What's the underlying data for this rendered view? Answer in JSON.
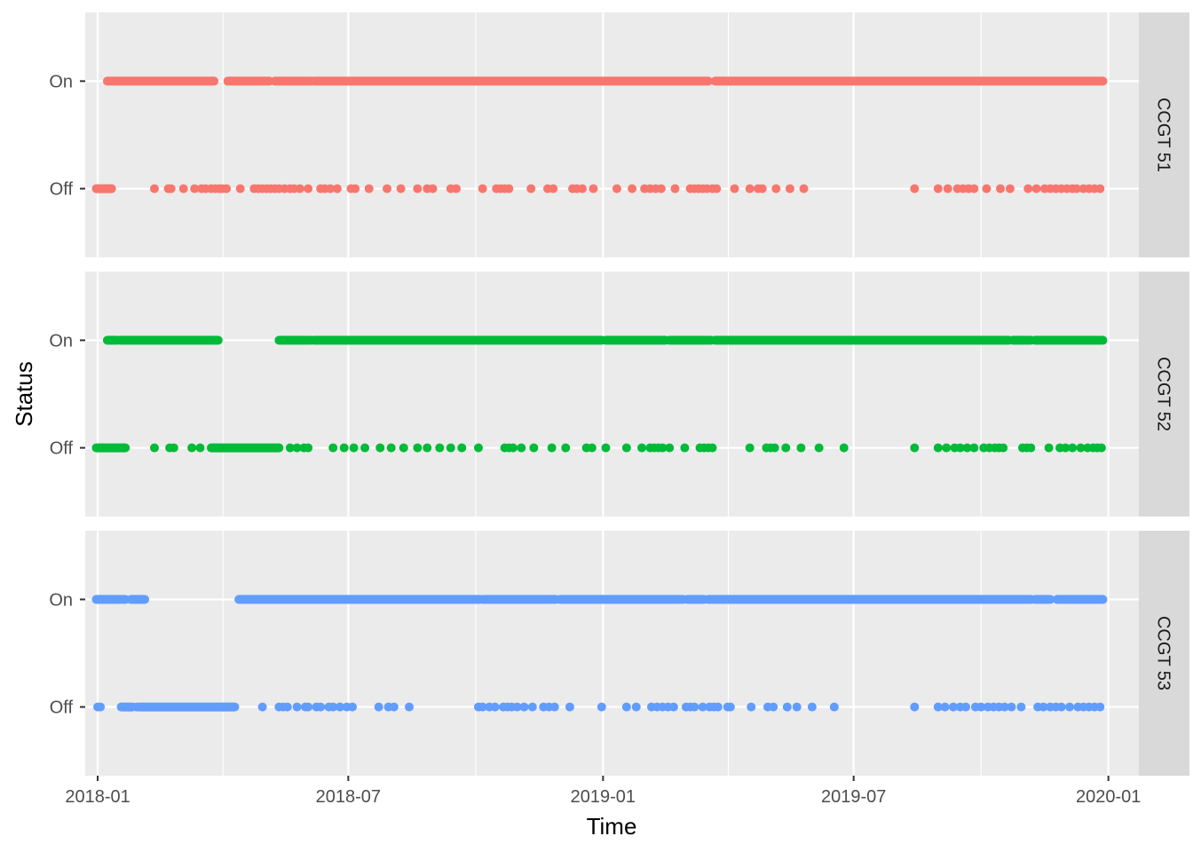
{
  "chart_data": {
    "type": "scatter",
    "xlabel": "Time",
    "ylabel": "Status",
    "x_ticks": [
      "2018-01",
      "2018-07",
      "2019-01",
      "2019-07",
      "2020-01"
    ],
    "y_categories": [
      "Off",
      "On"
    ],
    "xlim": [
      "2017-12-23",
      "2020-01-23"
    ],
    "grid": true,
    "legend": "none",
    "panels": [
      {
        "label": "CCGT 51",
        "color": "#F8766D",
        "on_ranges": [
          [
            "2018-01-08",
            "2018-03-26"
          ],
          [
            "2018-04-05",
            "2018-05-05"
          ],
          [
            "2018-05-09",
            "2018-06-04"
          ],
          [
            "2018-06-06",
            "2019-03-18"
          ],
          [
            "2019-03-23",
            "2019-12-28"
          ]
        ],
        "off_ranges": [
          [
            "2017-12-31",
            "2018-01-11"
          ]
        ],
        "off_points": [
          "2018-02-11",
          "2018-02-21",
          "2018-02-23",
          "2018-03-04",
          "2018-03-12",
          "2018-03-17",
          "2018-03-20",
          "2018-03-24",
          "2018-03-27",
          "2018-03-30",
          "2018-04-01",
          "2018-04-04",
          "2018-04-14",
          "2018-04-24",
          "2018-04-27",
          "2018-04-30",
          "2018-05-03",
          "2018-05-06",
          "2018-05-09",
          "2018-05-12",
          "2018-05-16",
          "2018-05-20",
          "2018-05-23",
          "2018-05-27",
          "2018-06-02",
          "2018-06-11",
          "2018-06-14",
          "2018-06-18",
          "2018-06-23",
          "2018-07-03",
          "2018-07-06",
          "2018-07-16",
          "2018-07-29",
          "2018-08-08",
          "2018-08-20",
          "2018-08-27",
          "2018-08-31",
          "2018-09-13",
          "2018-09-17",
          "2018-10-06",
          "2018-10-16",
          "2018-10-19",
          "2018-10-22",
          "2018-10-25",
          "2018-11-10",
          "2018-11-22",
          "2018-11-26",
          "2018-12-10",
          "2018-12-13",
          "2018-12-17",
          "2018-12-25",
          "2019-01-11",
          "2019-01-22",
          "2019-01-31",
          "2019-02-04",
          "2019-02-08",
          "2019-02-12",
          "2019-02-22",
          "2019-03-05",
          "2019-03-08",
          "2019-03-11",
          "2019-03-14",
          "2019-03-17",
          "2019-03-21",
          "2019-03-24",
          "2019-04-06",
          "2019-04-17",
          "2019-04-23",
          "2019-04-26",
          "2019-05-06",
          "2019-05-16",
          "2019-05-26",
          "2019-08-14",
          "2019-08-31",
          "2019-09-07",
          "2019-09-14",
          "2019-09-18",
          "2019-09-22",
          "2019-09-26",
          "2019-10-05",
          "2019-10-15",
          "2019-10-22",
          "2019-11-04",
          "2019-11-10",
          "2019-11-16",
          "2019-11-20",
          "2019-11-24",
          "2019-11-28",
          "2019-12-02",
          "2019-12-06",
          "2019-12-09",
          "2019-12-14",
          "2019-12-18",
          "2019-12-22",
          "2019-12-26"
        ]
      },
      {
        "label": "CCGT 52",
        "color": "#00BA38",
        "on_ranges": [
          [
            "2018-01-08",
            "2018-01-15"
          ],
          [
            "2018-01-17",
            "2018-03-29"
          ],
          [
            "2018-05-12",
            "2018-06-04"
          ],
          [
            "2018-06-06",
            "2018-12-31"
          ],
          [
            "2019-01-03",
            "2019-02-15"
          ],
          [
            "2019-02-18",
            "2019-03-20"
          ],
          [
            "2019-03-23",
            "2019-10-21"
          ],
          [
            "2019-10-24",
            "2019-11-06"
          ],
          [
            "2019-11-09",
            "2019-12-28"
          ]
        ],
        "off_ranges": [
          [
            "2017-12-31",
            "2018-01-21"
          ],
          [
            "2018-03-24",
            "2018-05-12"
          ]
        ],
        "off_points": [
          "2018-02-11",
          "2018-02-22",
          "2018-02-25",
          "2018-03-10",
          "2018-03-16",
          "2018-05-20",
          "2018-05-25",
          "2018-05-30",
          "2018-06-02",
          "2018-06-20",
          "2018-06-28",
          "2018-07-05",
          "2018-07-13",
          "2018-07-24",
          "2018-08-01",
          "2018-08-10",
          "2018-08-20",
          "2018-08-27",
          "2018-09-05",
          "2018-09-13",
          "2018-09-21",
          "2018-10-03",
          "2018-10-22",
          "2018-10-25",
          "2018-10-28",
          "2018-11-03",
          "2018-11-12",
          "2018-11-25",
          "2018-12-05",
          "2018-12-20",
          "2018-12-24",
          "2019-01-03",
          "2019-01-18",
          "2019-01-29",
          "2019-02-04",
          "2019-02-07",
          "2019-02-10",
          "2019-02-13",
          "2019-02-18",
          "2019-03-01",
          "2019-03-12",
          "2019-03-15",
          "2019-03-18",
          "2019-03-21",
          "2019-04-17",
          "2019-04-29",
          "2019-05-02",
          "2019-05-05",
          "2019-05-13",
          "2019-05-24",
          "2019-06-06",
          "2019-06-24",
          "2019-08-14",
          "2019-08-31",
          "2019-09-06",
          "2019-09-12",
          "2019-09-16",
          "2019-09-21",
          "2019-09-26",
          "2019-10-03",
          "2019-10-07",
          "2019-10-11",
          "2019-10-14",
          "2019-10-17",
          "2019-10-31",
          "2019-11-03",
          "2019-11-06",
          "2019-11-19",
          "2019-11-27",
          "2019-12-01",
          "2019-12-06",
          "2019-12-12",
          "2019-12-17",
          "2019-12-21",
          "2019-12-24",
          "2019-12-27"
        ]
      },
      {
        "label": "CCGT 53",
        "color": "#619CFF",
        "on_ranges": [
          [
            "2017-12-31",
            "2018-01-21"
          ],
          [
            "2018-01-25",
            "2018-02-04"
          ],
          [
            "2018-04-13",
            "2018-10-04"
          ],
          [
            "2018-10-06",
            "2018-11-28"
          ],
          [
            "2018-12-01",
            "2019-02-28"
          ],
          [
            "2019-03-03",
            "2019-03-15"
          ],
          [
            "2019-03-18",
            "2019-11-06"
          ],
          [
            "2019-11-09",
            "2019-11-20"
          ],
          [
            "2019-11-25",
            "2019-12-28"
          ]
        ],
        "off_ranges": [
          [
            "2018-01-18",
            "2018-01-26"
          ],
          [
            "2018-01-31",
            "2018-04-10"
          ]
        ],
        "off_points": [
          "2018-01-01",
          "2018-01-03",
          "2018-01-29",
          "2018-04-30",
          "2018-05-12",
          "2018-05-15",
          "2018-05-18",
          "2018-05-25",
          "2018-05-31",
          "2018-06-02",
          "2018-06-08",
          "2018-06-11",
          "2018-06-17",
          "2018-06-20",
          "2018-06-25",
          "2018-06-30",
          "2018-07-04",
          "2018-07-23",
          "2018-07-30",
          "2018-08-03",
          "2018-08-14",
          "2018-10-03",
          "2018-10-06",
          "2018-10-11",
          "2018-10-15",
          "2018-10-21",
          "2018-10-24",
          "2018-10-27",
          "2018-10-31",
          "2018-11-05",
          "2018-11-11",
          "2018-11-19",
          "2018-11-23",
          "2018-11-27",
          "2018-12-08",
          "2018-12-31",
          "2019-01-18",
          "2019-01-25",
          "2019-02-05",
          "2019-02-09",
          "2019-02-13",
          "2019-02-17",
          "2019-02-21",
          "2019-03-02",
          "2019-03-05",
          "2019-03-08",
          "2019-03-14",
          "2019-03-19",
          "2019-03-22",
          "2019-03-25",
          "2019-04-01",
          "2019-04-03",
          "2019-04-18",
          "2019-04-30",
          "2019-05-04",
          "2019-05-14",
          "2019-05-21",
          "2019-06-01",
          "2019-06-17",
          "2019-08-14",
          "2019-08-31",
          "2019-09-05",
          "2019-09-11",
          "2019-09-16",
          "2019-09-20",
          "2019-09-27",
          "2019-10-01",
          "2019-10-06",
          "2019-10-10",
          "2019-10-14",
          "2019-10-18",
          "2019-10-23",
          "2019-10-30",
          "2019-11-11",
          "2019-11-15",
          "2019-11-20",
          "2019-11-24",
          "2019-11-28",
          "2019-12-04",
          "2019-12-10",
          "2019-12-14",
          "2019-12-18",
          "2019-12-22",
          "2019-12-26"
        ]
      }
    ]
  }
}
